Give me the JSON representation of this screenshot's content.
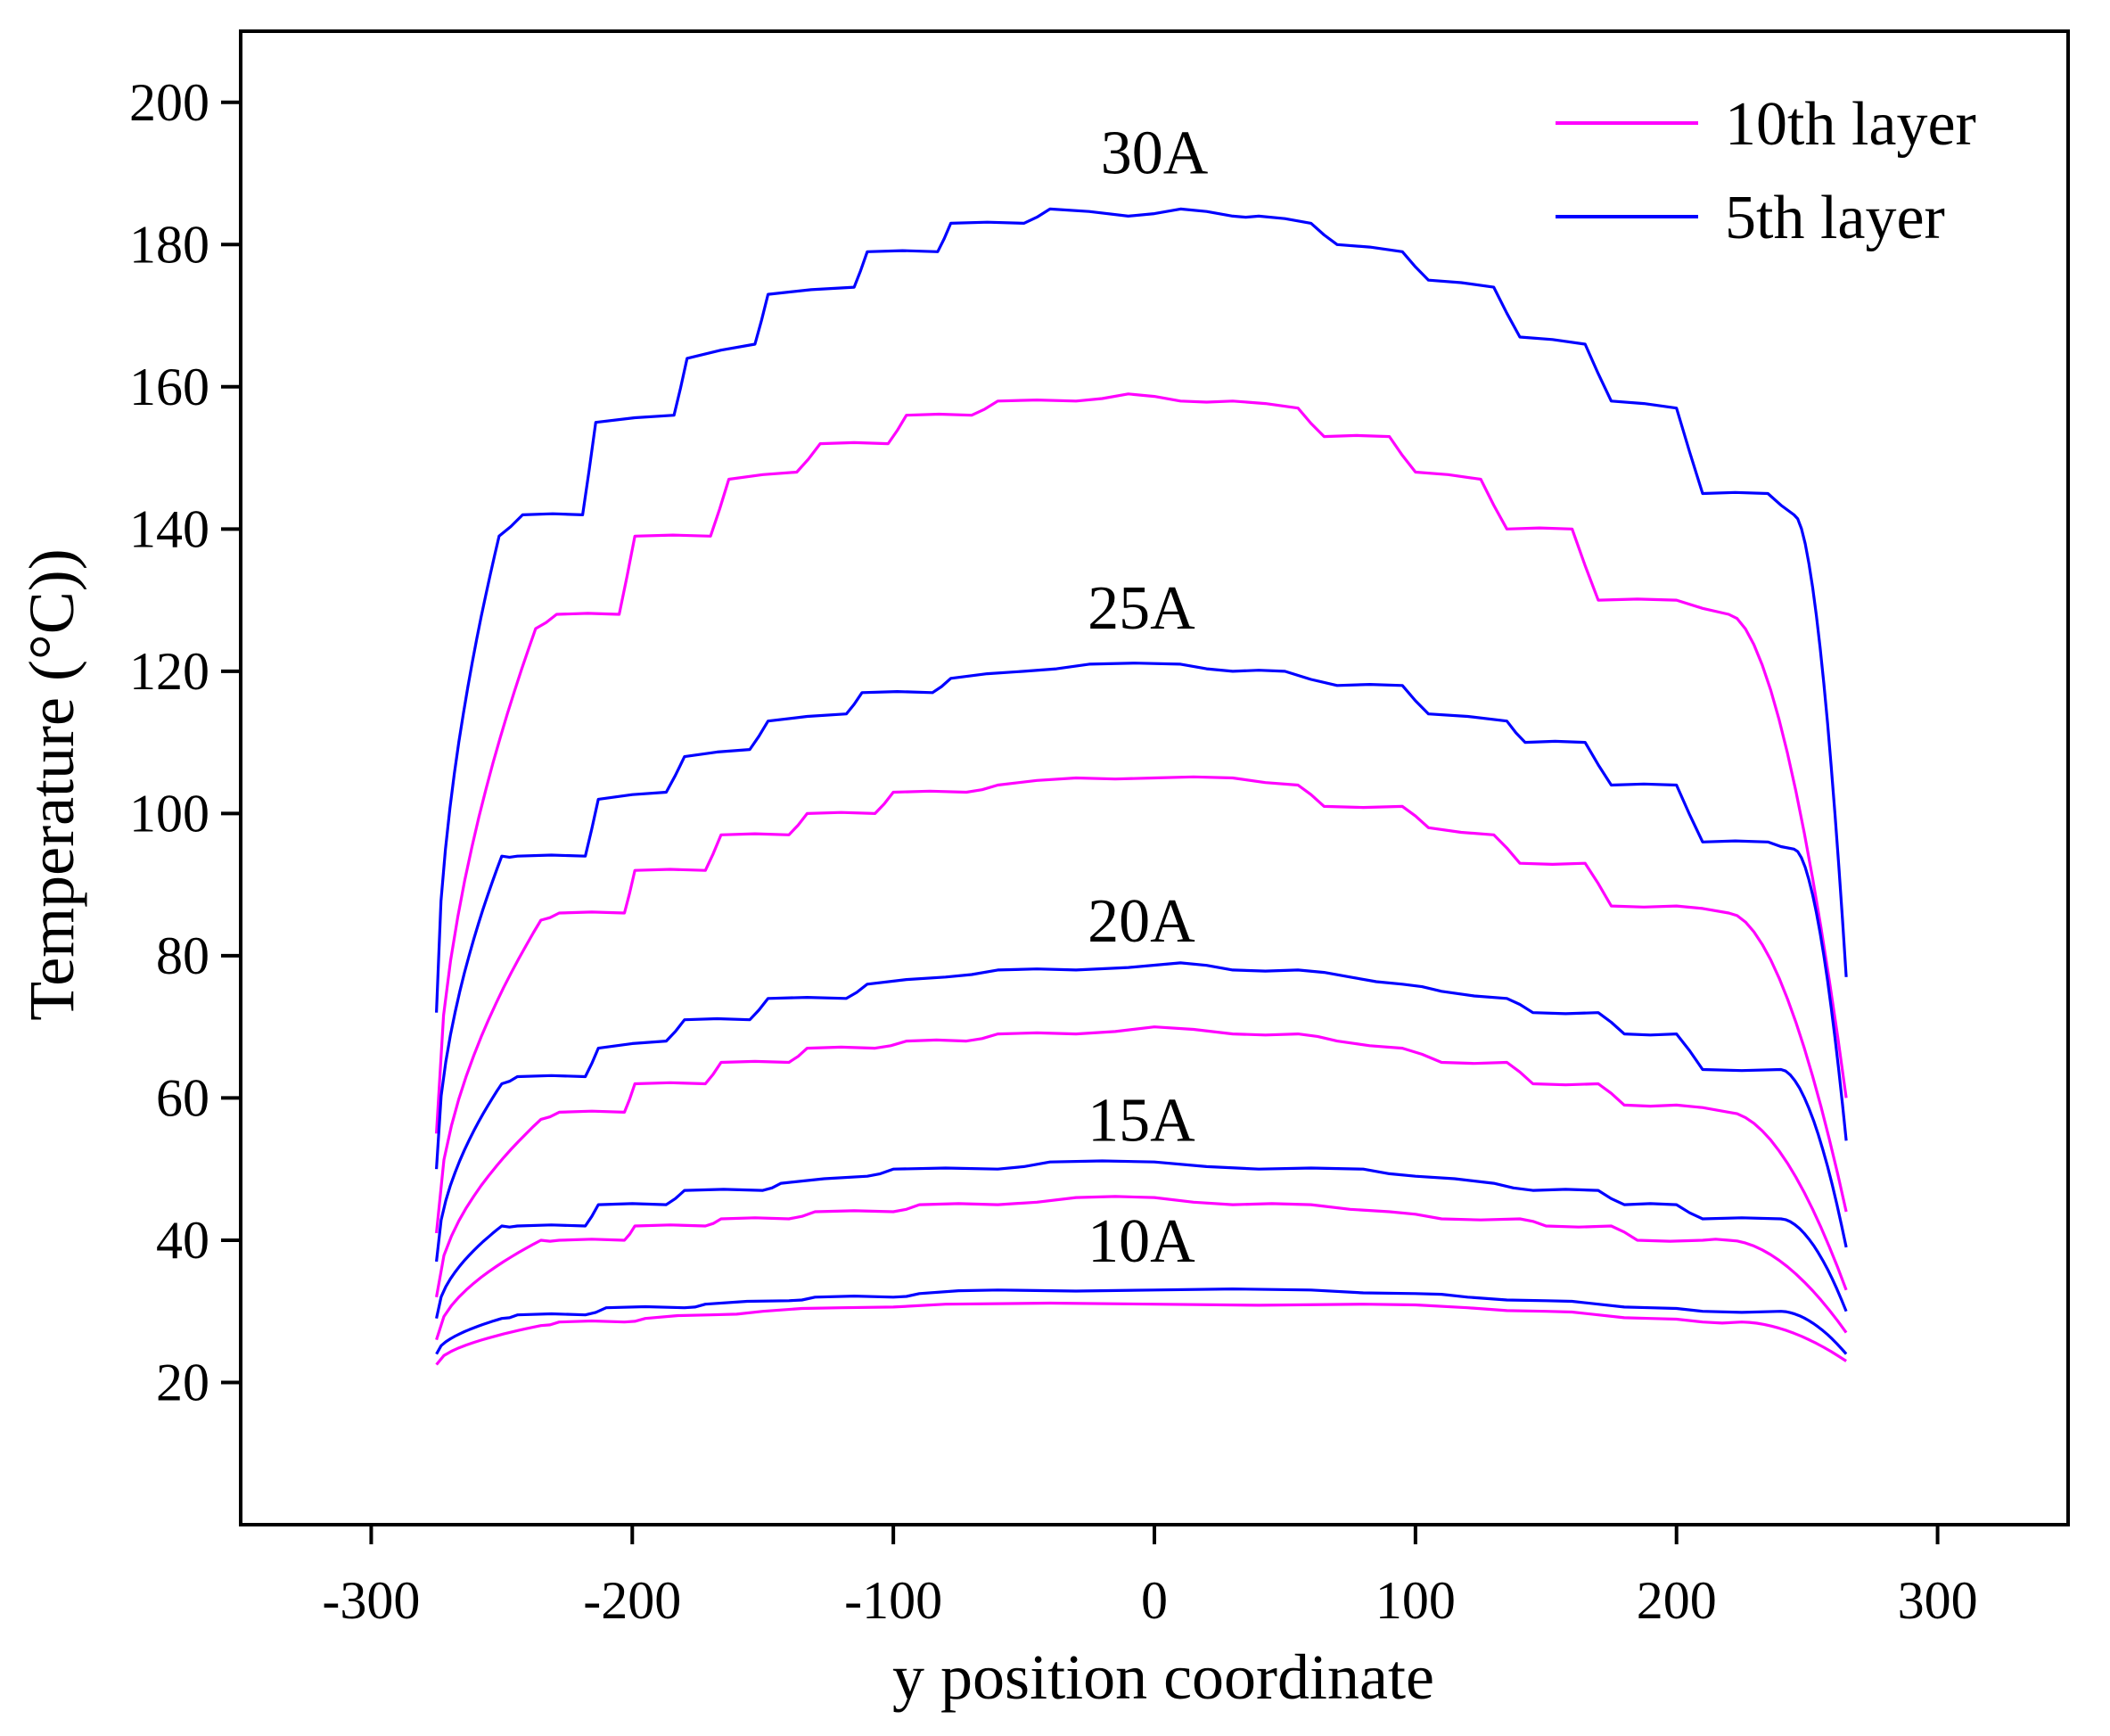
{
  "chart_data": {
    "type": "line",
    "title": "",
    "xlabel": "y position coordinate",
    "ylabel": "Temperature (°C))",
    "xlim": [
      -350,
      350
    ],
    "ylim": [
      0,
      210
    ],
    "xticks": [
      -300,
      -200,
      -100,
      0,
      100,
      200,
      300
    ],
    "yticks": [
      20,
      40,
      60,
      80,
      100,
      120,
      140,
      160,
      180,
      200
    ],
    "x_range": [
      -275,
      265
    ],
    "grid": false,
    "legend_position": "top-right",
    "legend": [
      {
        "name": "10th layer",
        "color": "#ff00ff"
      },
      {
        "name": "5th layer",
        "color": "#0000ff"
      }
    ],
    "annotations": [
      {
        "text": "30A",
        "x": 0,
        "y": 190
      },
      {
        "text": "25A",
        "x": -5,
        "y": 126
      },
      {
        "text": "20A",
        "x": -5,
        "y": 82
      },
      {
        "text": "15A",
        "x": -5,
        "y": 54
      },
      {
        "text": "10A",
        "x": -5,
        "y": 37
      }
    ],
    "series": [
      {
        "name": "5th layer",
        "current": "30A",
        "color": "#0000ff",
        "edge_left": 72,
        "edge_right": 77,
        "steps": [
          [
            -251,
            139
          ],
          [
            -242,
            142
          ],
          [
            -219,
            142
          ],
          [
            -214,
            155
          ],
          [
            -184,
            156
          ],
          [
            -179,
            164
          ],
          [
            -153,
            166
          ],
          [
            -148,
            173
          ],
          [
            -115,
            174
          ],
          [
            -110,
            179
          ],
          [
            -83,
            179
          ],
          [
            -78,
            183
          ],
          [
            -50,
            183
          ],
          [
            -40,
            185
          ],
          [
            -10,
            184
          ],
          [
            10,
            185
          ],
          [
            30,
            184
          ],
          [
            40,
            184
          ],
          [
            60,
            183
          ],
          [
            70,
            180
          ],
          [
            95,
            179
          ],
          [
            105,
            175
          ],
          [
            130,
            174
          ],
          [
            140,
            167
          ],
          [
            165,
            166
          ],
          [
            175,
            158
          ],
          [
            200,
            157
          ],
          [
            210,
            145
          ],
          [
            235,
            145
          ],
          [
            245,
            142
          ]
        ]
      },
      {
        "name": "10th layer",
        "current": "30A",
        "color": "#ff00ff",
        "edge_left": 55,
        "edge_right": 60,
        "steps": [
          [
            -237,
            126
          ],
          [
            -229,
            128
          ],
          [
            -205,
            128
          ],
          [
            -199,
            139
          ],
          [
            -170,
            139
          ],
          [
            -163,
            147
          ],
          [
            -137,
            148
          ],
          [
            -128,
            152
          ],
          [
            -102,
            152
          ],
          [
            -95,
            156
          ],
          [
            -70,
            156
          ],
          [
            -60,
            158
          ],
          [
            -30,
            158
          ],
          [
            -10,
            159
          ],
          [
            10,
            158
          ],
          [
            30,
            158
          ],
          [
            55,
            157
          ],
          [
            65,
            153
          ],
          [
            90,
            153
          ],
          [
            100,
            148
          ],
          [
            125,
            147
          ],
          [
            135,
            140
          ],
          [
            160,
            140
          ],
          [
            170,
            130
          ],
          [
            200,
            130
          ],
          [
            220,
            128
          ]
        ]
      },
      {
        "name": "5th layer",
        "current": "25A",
        "color": "#0000ff",
        "edge_left": 50,
        "edge_right": 54,
        "steps": [
          [
            -250,
            94
          ],
          [
            -244,
            94
          ],
          [
            -218,
            94
          ],
          [
            -213,
            102
          ],
          [
            -187,
            103
          ],
          [
            -180,
            108
          ],
          [
            -155,
            109
          ],
          [
            -148,
            113
          ],
          [
            -118,
            114
          ],
          [
            -112,
            117
          ],
          [
            -85,
            117
          ],
          [
            -78,
            119
          ],
          [
            -50,
            120
          ],
          [
            -25,
            121
          ],
          [
            10,
            121
          ],
          [
            30,
            120
          ],
          [
            50,
            120
          ],
          [
            70,
            118
          ],
          [
            95,
            118
          ],
          [
            105,
            114
          ],
          [
            135,
            113
          ],
          [
            142,
            110
          ],
          [
            165,
            110
          ],
          [
            175,
            104
          ],
          [
            200,
            104
          ],
          [
            210,
            96
          ],
          [
            235,
            96
          ],
          [
            245,
            95
          ]
        ]
      },
      {
        "name": "10th layer",
        "current": "25A",
        "color": "#ff00ff",
        "edge_left": 41,
        "edge_right": 44,
        "steps": [
          [
            -235,
            85
          ],
          [
            -228,
            86
          ],
          [
            -203,
            86
          ],
          [
            -199,
            92
          ],
          [
            -172,
            92
          ],
          [
            -166,
            97
          ],
          [
            -140,
            97
          ],
          [
            -133,
            100
          ],
          [
            -107,
            100
          ],
          [
            -100,
            103
          ],
          [
            -72,
            103
          ],
          [
            -60,
            104
          ],
          [
            -30,
            105
          ],
          [
            0,
            105
          ],
          [
            30,
            105
          ],
          [
            55,
            104
          ],
          [
            65,
            101
          ],
          [
            95,
            101
          ],
          [
            105,
            98
          ],
          [
            130,
            97
          ],
          [
            140,
            93
          ],
          [
            165,
            93
          ],
          [
            175,
            87
          ],
          [
            200,
            87
          ],
          [
            220,
            86
          ]
        ]
      },
      {
        "name": "5th layer",
        "current": "20A",
        "color": "#0000ff",
        "edge_left": 37,
        "edge_right": 39,
        "steps": [
          [
            -250,
            62
          ],
          [
            -244,
            63
          ],
          [
            -218,
            63
          ],
          [
            -213,
            67
          ],
          [
            -187,
            68
          ],
          [
            -180,
            71
          ],
          [
            -155,
            71
          ],
          [
            -148,
            74
          ],
          [
            -118,
            74
          ],
          [
            -110,
            76
          ],
          [
            -80,
            77
          ],
          [
            -60,
            78
          ],
          [
            -30,
            78
          ],
          [
            10,
            79
          ],
          [
            30,
            78
          ],
          [
            55,
            78
          ],
          [
            75,
            77
          ],
          [
            95,
            76
          ],
          [
            110,
            75
          ],
          [
            135,
            74
          ],
          [
            145,
            72
          ],
          [
            170,
            72
          ],
          [
            180,
            69
          ],
          [
            200,
            69
          ],
          [
            210,
            64
          ],
          [
            240,
            64
          ]
        ]
      },
      {
        "name": "10th layer",
        "current": "20A",
        "color": "#ff00ff",
        "edge_left": 32,
        "edge_right": 33,
        "steps": [
          [
            -235,
            57
          ],
          [
            -228,
            58
          ],
          [
            -203,
            58
          ],
          [
            -199,
            62
          ],
          [
            -172,
            62
          ],
          [
            -166,
            65
          ],
          [
            -140,
            65
          ],
          [
            -133,
            67
          ],
          [
            -107,
            67
          ],
          [
            -95,
            68
          ],
          [
            -72,
            68
          ],
          [
            -60,
            69
          ],
          [
            -30,
            69
          ],
          [
            0,
            70
          ],
          [
            30,
            69
          ],
          [
            55,
            69
          ],
          [
            70,
            68
          ],
          [
            95,
            67
          ],
          [
            110,
            65
          ],
          [
            135,
            65
          ],
          [
            145,
            62
          ],
          [
            170,
            62
          ],
          [
            180,
            59
          ],
          [
            200,
            59
          ],
          [
            220,
            58
          ]
        ]
      },
      {
        "name": "5th layer",
        "current": "15A",
        "color": "#0000ff",
        "edge_left": 29,
        "edge_right": 30,
        "steps": [
          [
            -250,
            42
          ],
          [
            -244,
            42
          ],
          [
            -218,
            42
          ],
          [
            -213,
            45
          ],
          [
            -187,
            45
          ],
          [
            -180,
            47
          ],
          [
            -150,
            47
          ],
          [
            -143,
            48
          ],
          [
            -110,
            49
          ],
          [
            -100,
            50
          ],
          [
            -60,
            50
          ],
          [
            -40,
            51
          ],
          [
            0,
            51
          ],
          [
            40,
            50
          ],
          [
            80,
            50
          ],
          [
            100,
            49
          ],
          [
            130,
            48
          ],
          [
            145,
            47
          ],
          [
            170,
            47
          ],
          [
            180,
            45
          ],
          [
            200,
            45
          ],
          [
            210,
            43
          ],
          [
            240,
            43
          ]
        ]
      },
      {
        "name": "10th layer",
        "current": "15A",
        "color": "#ff00ff",
        "edge_left": 26,
        "edge_right": 27,
        "steps": [
          [
            -235,
            40
          ],
          [
            -228,
            40
          ],
          [
            -203,
            40
          ],
          [
            -199,
            42
          ],
          [
            -172,
            42
          ],
          [
            -166,
            43
          ],
          [
            -140,
            43
          ],
          [
            -130,
            44
          ],
          [
            -100,
            44
          ],
          [
            -90,
            45
          ],
          [
            -60,
            45
          ],
          [
            -30,
            46
          ],
          [
            0,
            46
          ],
          [
            30,
            45
          ],
          [
            60,
            45
          ],
          [
            90,
            44
          ],
          [
            110,
            43
          ],
          [
            140,
            43
          ],
          [
            150,
            42
          ],
          [
            175,
            42
          ],
          [
            185,
            40
          ],
          [
            210,
            40
          ],
          [
            220,
            40
          ]
        ]
      },
      {
        "name": "5th layer",
        "current": "10A",
        "color": "#0000ff",
        "edge_left": 24,
        "edge_right": 24,
        "steps": [
          [
            -250,
            29
          ],
          [
            -244,
            29.5
          ],
          [
            -218,
            29.5
          ],
          [
            -210,
            30.5
          ],
          [
            -180,
            30.5
          ],
          [
            -172,
            31
          ],
          [
            -140,
            31.5
          ],
          [
            -130,
            32
          ],
          [
            -100,
            32
          ],
          [
            -90,
            32.5
          ],
          [
            -60,
            33
          ],
          [
            0,
            33
          ],
          [
            60,
            33
          ],
          [
            100,
            32.5
          ],
          [
            120,
            32
          ],
          [
            150,
            31.5
          ],
          [
            170,
            31
          ],
          [
            190,
            30.5
          ],
          [
            210,
            30
          ],
          [
            240,
            30
          ]
        ]
      },
      {
        "name": "10th layer",
        "current": "10A",
        "color": "#ff00ff",
        "edge_left": 22.5,
        "edge_right": 23,
        "steps": [
          [
            -235,
            28
          ],
          [
            -228,
            28.5
          ],
          [
            -203,
            28.5
          ],
          [
            -195,
            29
          ],
          [
            -170,
            29.5
          ],
          [
            -150,
            30
          ],
          [
            -120,
            30.5
          ],
          [
            -80,
            31
          ],
          [
            0,
            31
          ],
          [
            80,
            31
          ],
          [
            120,
            30.5
          ],
          [
            150,
            30
          ],
          [
            170,
            29.5
          ],
          [
            190,
            29
          ],
          [
            210,
            28.5
          ],
          [
            225,
            28.5
          ]
        ]
      }
    ]
  }
}
